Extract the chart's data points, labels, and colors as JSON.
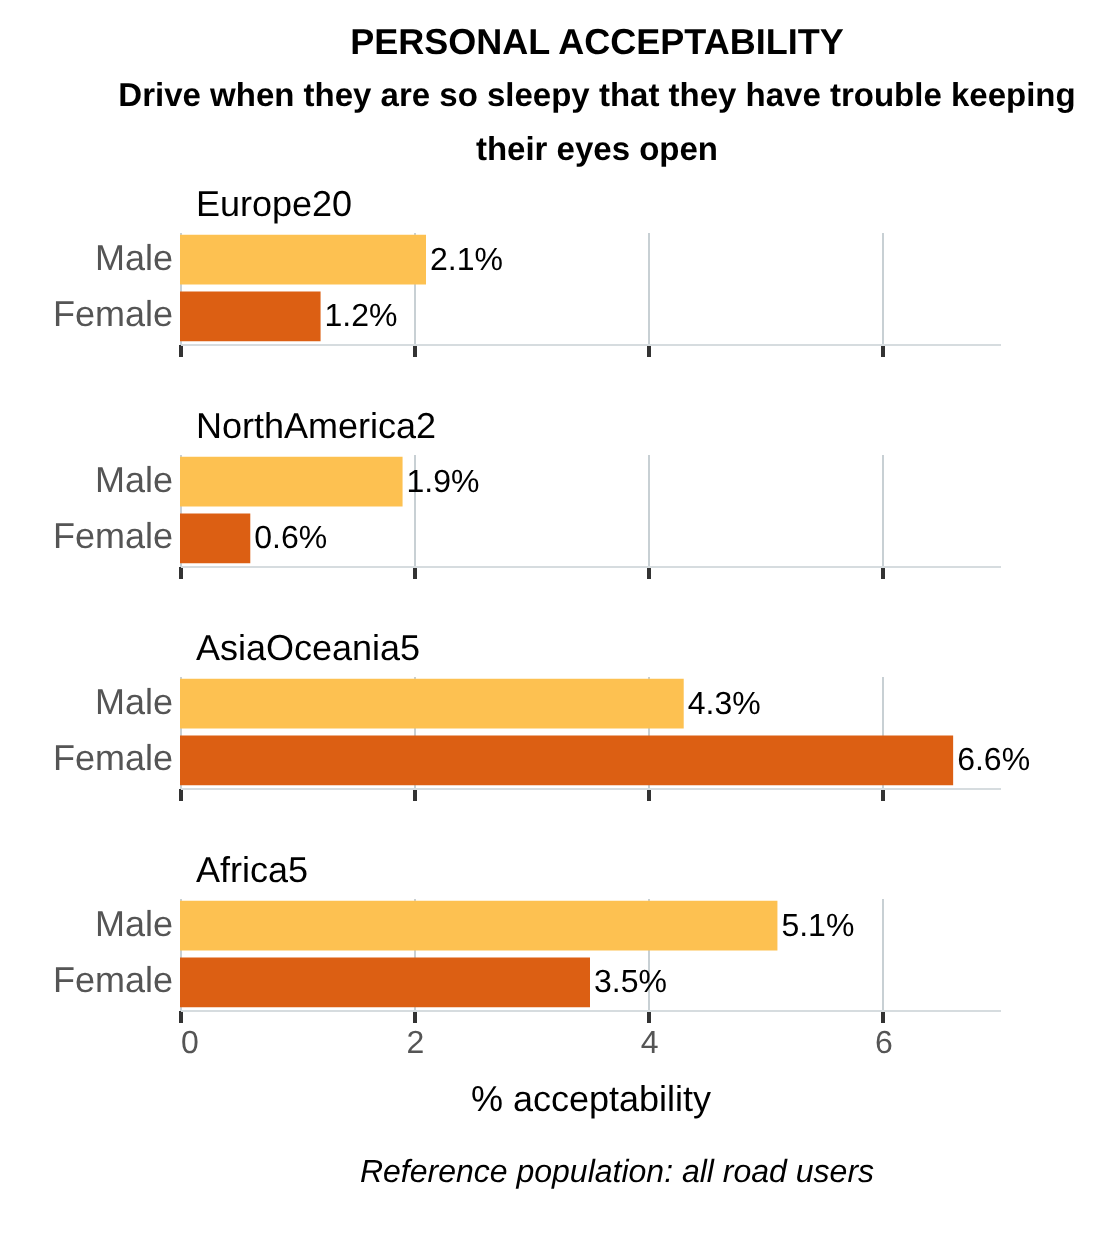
{
  "chart_data": [
    {
      "type": "other",
      "title": "PERSONAL ACCEPTABILITY",
      "subtitle": "Drive when they are so sleepy that they have trouble keeping their eyes open"
    },
    {
      "type": "bar",
      "title": "Europe20",
      "orientation": "horizontal",
      "categories": [
        "Male",
        "Female"
      ],
      "values": [
        2.1,
        1.2
      ],
      "colors": [
        "#fdc151",
        "#dc5f13"
      ],
      "value_labels": [
        "2.1%",
        "1.2%"
      ],
      "xlim": [
        0,
        7
      ],
      "xticks": [
        0,
        2,
        4,
        6
      ],
      "grid": "x",
      "tick_labels": "y"
    },
    {
      "type": "bar",
      "title": "NorthAmerica2",
      "orientation": "horizontal",
      "categories": [
        "Male",
        "Female"
      ],
      "values": [
        1.9,
        0.6
      ],
      "colors": [
        "#fdc151",
        "#dc5f13"
      ],
      "value_labels": [
        "1.9%",
        "0.6%"
      ],
      "xlim": [
        0,
        7
      ],
      "xticks": [
        0,
        2,
        4,
        6
      ],
      "grid": "x",
      "tick_labels": "y"
    },
    {
      "type": "bar",
      "title": "AsiaOceania5",
      "orientation": "horizontal",
      "categories": [
        "Male",
        "Female"
      ],
      "values": [
        4.3,
        6.6
      ],
      "colors": [
        "#fdc151",
        "#dc5f13"
      ],
      "value_labels": [
        "4.3%",
        "6.6%"
      ],
      "xlim": [
        0,
        7
      ],
      "xticks": [
        0,
        2,
        4,
        6
      ],
      "grid": "x",
      "tick_labels": "y"
    },
    {
      "type": "bar",
      "title": "Africa5",
      "orientation": "horizontal",
      "categories": [
        "Male",
        "Female"
      ],
      "values": [
        5.1,
        3.5
      ],
      "colors": [
        "#fdc151",
        "#dc5f13"
      ],
      "value_labels": [
        "5.1%",
        "3.5%"
      ],
      "xlim": [
        0,
        7
      ],
      "xticks": [
        0,
        2,
        4,
        6
      ],
      "grid": "x",
      "xlabel": "% acceptability",
      "annotations": [
        "Reference population: all road users"
      ]
    }
  ]
}
